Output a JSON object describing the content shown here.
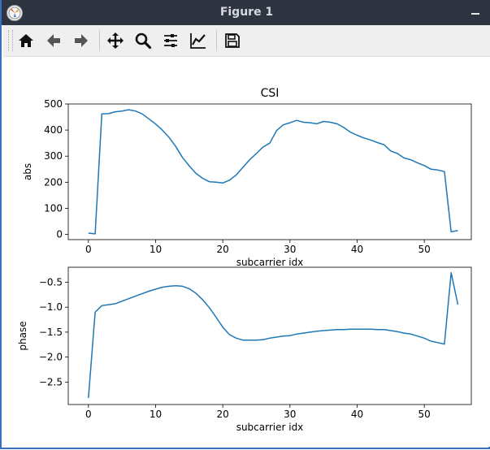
{
  "window": {
    "title": "Figure 1",
    "app_icon": "matplotlib-icon",
    "minimize_label": "–"
  },
  "toolbar": {
    "buttons": [
      {
        "name": "home-icon",
        "tooltip": "Reset original view"
      },
      {
        "name": "back-arrow-icon",
        "tooltip": "Back to previous view"
      },
      {
        "name": "forward-arrow-icon",
        "tooltip": "Forward to next view"
      },
      {
        "name": "pan-icon",
        "tooltip": "Pan axes"
      },
      {
        "name": "zoom-icon",
        "tooltip": "Zoom to rectangle"
      },
      {
        "name": "subplots-icon",
        "tooltip": "Configure subplots"
      },
      {
        "name": "edit-axes-icon",
        "tooltip": "Edit axis, curve and image parameters"
      },
      {
        "name": "save-icon",
        "tooltip": "Save the figure"
      }
    ]
  },
  "chart_data": [
    {
      "type": "line",
      "title": "CSI",
      "xlabel": "subcarrier idx",
      "ylabel": "abs",
      "xlim": [
        -3,
        57
      ],
      "ylim": [
        -20,
        500
      ],
      "xticks": [
        0,
        10,
        20,
        30,
        40,
        50
      ],
      "yticks": [
        0,
        100,
        200,
        300,
        400,
        500
      ],
      "color": "#1f77b4",
      "x": [
        0,
        1,
        2,
        3,
        4,
        5,
        6,
        7,
        8,
        9,
        10,
        11,
        12,
        13,
        14,
        15,
        16,
        17,
        18,
        19,
        20,
        21,
        22,
        23,
        24,
        25,
        26,
        27,
        28,
        29,
        30,
        31,
        32,
        33,
        34,
        35,
        36,
        37,
        38,
        39,
        40,
        41,
        42,
        43,
        44,
        45,
        46,
        47,
        48,
        49,
        50,
        51,
        52,
        53,
        54,
        55
      ],
      "y": [
        5,
        2,
        462,
        463,
        470,
        473,
        478,
        473,
        462,
        443,
        423,
        400,
        372,
        337,
        295,
        263,
        234,
        215,
        202,
        200,
        197,
        208,
        228,
        257,
        286,
        310,
        335,
        350,
        398,
        420,
        428,
        437,
        430,
        428,
        424,
        433,
        430,
        424,
        410,
        392,
        380,
        370,
        362,
        352,
        344,
        320,
        310,
        293,
        286,
        274,
        264,
        250,
        247,
        241,
        10,
        15
      ]
    },
    {
      "type": "line",
      "title": "",
      "xlabel": "subcarrier idx",
      "ylabel": "phase",
      "xlim": [
        -3,
        57
      ],
      "ylim": [
        -2.95,
        -0.2
      ],
      "xticks": [
        0,
        10,
        20,
        30,
        40,
        50
      ],
      "yticks": [
        -2.5,
        -2.0,
        -1.5,
        -1.0,
        -0.5
      ],
      "ytick_labels": [
        "−2.5",
        "−2.0",
        "−1.5",
        "−1.0",
        "−0.5"
      ],
      "color": "#1f77b4",
      "x": [
        0,
        1,
        2,
        3,
        4,
        5,
        6,
        7,
        8,
        9,
        10,
        11,
        12,
        13,
        14,
        15,
        16,
        17,
        18,
        19,
        20,
        21,
        22,
        23,
        24,
        25,
        26,
        27,
        28,
        29,
        30,
        31,
        32,
        33,
        34,
        35,
        36,
        37,
        38,
        39,
        40,
        41,
        42,
        43,
        44,
        45,
        46,
        47,
        48,
        49,
        50,
        51,
        52,
        53,
        54,
        55
      ],
      "y": [
        -2.82,
        -1.1,
        -0.97,
        -0.95,
        -0.93,
        -0.88,
        -0.83,
        -0.78,
        -0.73,
        -0.68,
        -0.64,
        -0.6,
        -0.58,
        -0.57,
        -0.58,
        -0.63,
        -0.72,
        -0.85,
        -1.01,
        -1.2,
        -1.4,
        -1.55,
        -1.62,
        -1.66,
        -1.66,
        -1.66,
        -1.65,
        -1.62,
        -1.6,
        -1.58,
        -1.57,
        -1.54,
        -1.52,
        -1.5,
        -1.48,
        -1.47,
        -1.46,
        -1.45,
        -1.45,
        -1.44,
        -1.44,
        -1.44,
        -1.44,
        -1.45,
        -1.45,
        -1.47,
        -1.49,
        -1.52,
        -1.54,
        -1.58,
        -1.62,
        -1.68,
        -1.71,
        -1.74,
        -0.31,
        -0.95
      ]
    }
  ]
}
